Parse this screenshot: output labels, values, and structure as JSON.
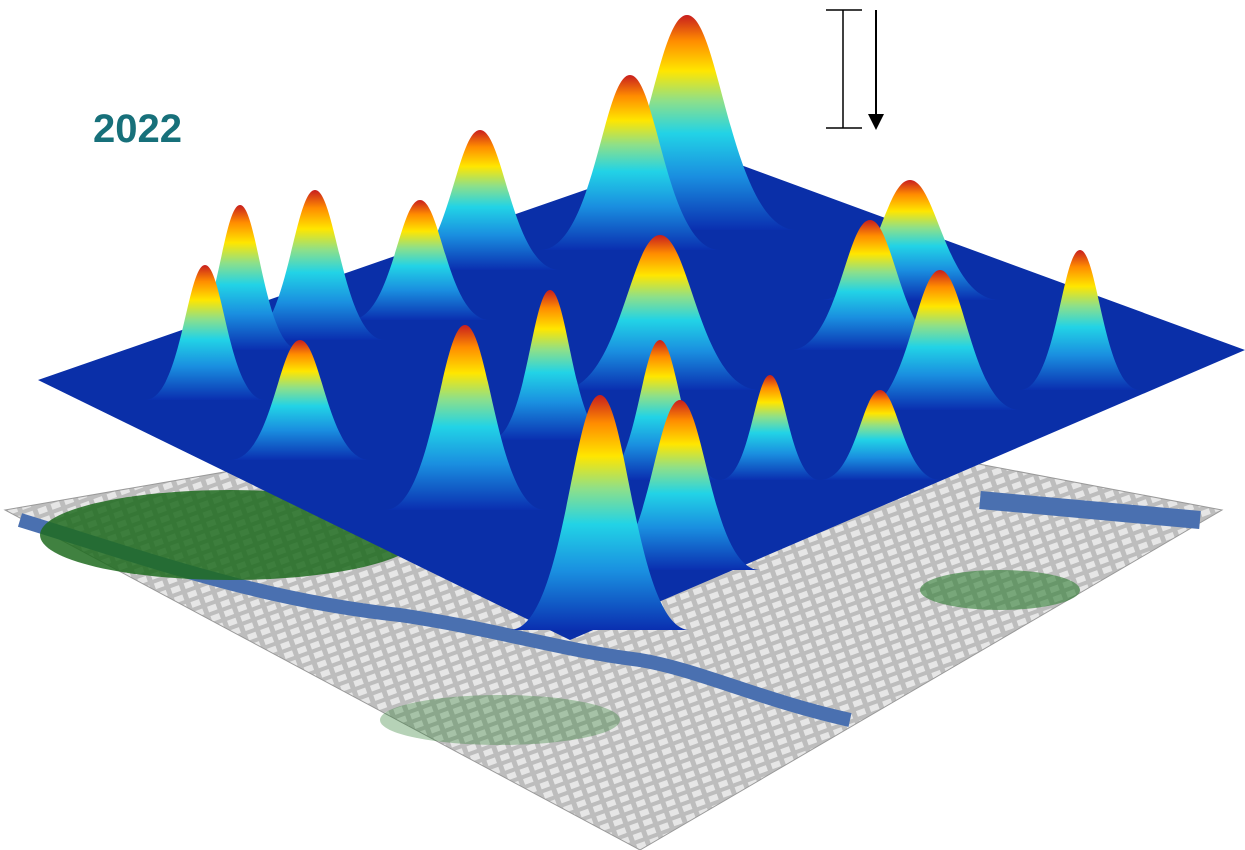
{
  "title": "2022"
}
